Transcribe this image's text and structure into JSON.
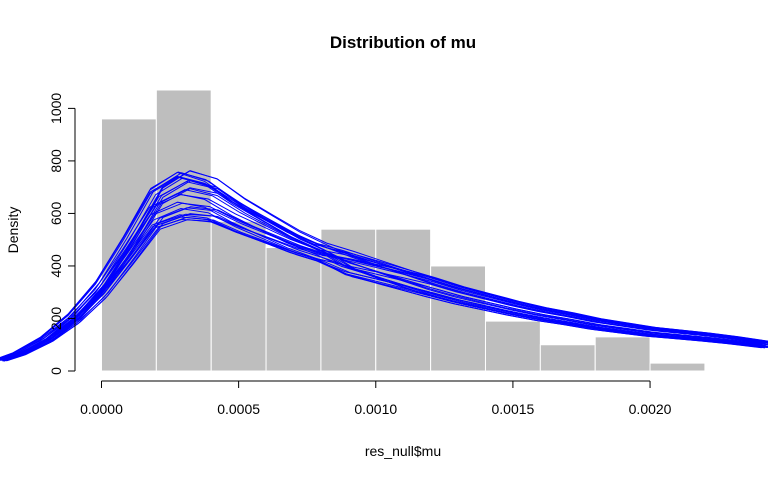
{
  "chart_data": {
    "type": "histogram",
    "title": "Distribution of mu",
    "xlabel": "res_null$mu",
    "ylabel": "Density",
    "xlim": [
      -0.00037,
      0.00243
    ],
    "ylim": [
      0,
      1070
    ],
    "x_ticks": [
      0.0,
      0.0005,
      0.001,
      0.0015,
      0.002
    ],
    "x_tick_labels": [
      "0.0000",
      "0.0005",
      "0.0010",
      "0.0015",
      "0.0020"
    ],
    "y_ticks": [
      0,
      200,
      400,
      600,
      800,
      1000
    ],
    "y_tick_labels": [
      "0",
      "200",
      "400",
      "600",
      "800",
      "1000"
    ],
    "bar_color": "#bebebe",
    "bars": [
      {
        "x0": 0.0,
        "x1": 0.0002,
        "density": 960
      },
      {
        "x0": 0.0002,
        "x1": 0.0004,
        "density": 1070
      },
      {
        "x0": 0.0004,
        "x1": 0.0006,
        "density": 570
      },
      {
        "x0": 0.0006,
        "x1": 0.0008,
        "density": 470
      },
      {
        "x0": 0.0008,
        "x1": 0.001,
        "density": 540
      },
      {
        "x0": 0.001,
        "x1": 0.0012,
        "density": 540
      },
      {
        "x0": 0.0012,
        "x1": 0.0014,
        "density": 400
      },
      {
        "x0": 0.0014,
        "x1": 0.0016,
        "density": 190
      },
      {
        "x0": 0.0016,
        "x1": 0.0018,
        "density": 100
      },
      {
        "x0": 0.0018,
        "x1": 0.002,
        "density": 130
      },
      {
        "x0": 0.002,
        "x1": 0.0022,
        "density": 30
      }
    ],
    "density_color": "#0000ff",
    "density_curves": {
      "count": 28,
      "x": [
        -0.00037,
        -0.0003,
        -0.0002,
        -0.0001,
        0.0,
        0.0001,
        0.0002,
        0.0003,
        0.0004,
        0.0005,
        0.0006,
        0.0007,
        0.0008,
        0.0009,
        0.001,
        0.0011,
        0.0012,
        0.0013,
        0.0014,
        0.0015,
        0.0016,
        0.0017,
        0.0018,
        0.0019,
        0.002,
        0.0021,
        0.0022,
        0.0023,
        0.00243
      ],
      "mean_density": [
        40,
        65,
        120,
        200,
        310,
        460,
        620,
        670,
        650,
        590,
        540,
        490,
        450,
        410,
        380,
        350,
        320,
        290,
        265,
        240,
        218,
        200,
        180,
        165,
        150,
        140,
        130,
        118,
        100
      ]
    }
  }
}
